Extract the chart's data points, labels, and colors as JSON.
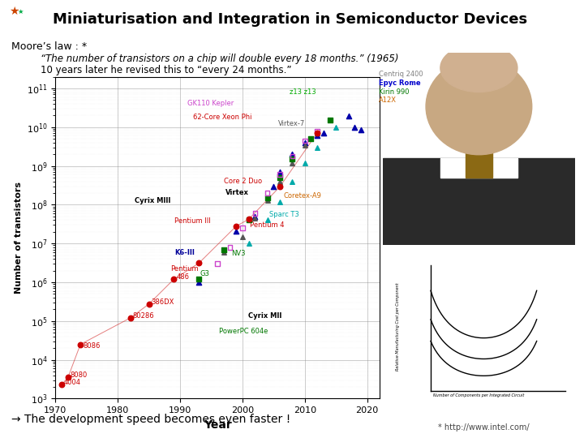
{
  "title": "Miniaturisation and Integration in Semiconductor Devices",
  "moores_law_label": "Moore’s law : *",
  "quote1": "“The number of transistors on a chip will double every 18 months.” (1965)",
  "quote2": "10 years later he revised this to “every 24 months.”",
  "footer_arrow": "→ The development speed becomes even faster !",
  "footnote": "* http://www.intel.com/",
  "xlabel": "Year",
  "ylabel": "Number of transistors",
  "title_color": "#000000",
  "header_line_color1": "#1f5fa6",
  "header_line_color2": "#00b0f0",
  "xlim": [
    1970,
    2022
  ],
  "red_dots": {
    "x": [
      1971,
      1972,
      1974,
      1982,
      1985,
      1989,
      1993,
      1999,
      2001,
      2006,
      2012
    ],
    "y": [
      2300,
      3500,
      25000,
      120000,
      275000,
      1200000,
      3100000,
      28000000,
      42000000,
      291000000,
      7100000000
    ],
    "labels": [
      "4004",
      "8080",
      "8086",
      "80286",
      "386DX",
      "486",
      "Pentium",
      "Pentium III",
      "Pentium 4",
      "Core 2 Duo",
      "62-Core Xeon Phi"
    ],
    "color": "#cc0000"
  },
  "blue_triangles": {
    "x": [
      1993,
      1999,
      2002,
      2005,
      2006,
      2008,
      2010,
      2012,
      2013,
      2017,
      2018,
      2019
    ],
    "y": [
      1000000,
      21000000,
      50000000,
      300000000,
      700000000,
      2000000000,
      4000000000,
      6000000000,
      7000000000,
      19200000000,
      10000000000,
      8500000000
    ],
    "color": "#0000aa"
  },
  "dark_triangles": {
    "x": [
      1997,
      2000,
      2002,
      2004,
      2006,
      2008,
      2010,
      2012
    ],
    "y": [
      6000000,
      15000000,
      45000000,
      130000000,
      400000000,
      1200000000,
      3500000000,
      7000000000
    ],
    "color": "#555555"
  },
  "green_squares": {
    "x": [
      1993,
      1997,
      2001,
      2004,
      2006,
      2008,
      2011,
      2014
    ],
    "y": [
      1200000,
      7000000,
      40000000,
      150000000,
      500000000,
      1500000000,
      5000000000,
      15000000000
    ],
    "color": "#007700"
  },
  "pink_squares": {
    "x": [
      1996,
      1998,
      2000,
      2002,
      2004,
      2006,
      2008,
      2010,
      2012
    ],
    "y": [
      3000000,
      8000000,
      25000000,
      60000000,
      200000000,
      600000000,
      1800000000,
      4500000000,
      8000000000
    ],
    "color": "#cc44cc"
  },
  "cyan_triangles": {
    "x": [
      2001,
      2004,
      2006,
      2008,
      2010,
      2012,
      2015
    ],
    "y": [
      10000000,
      40000000,
      120000000,
      400000000,
      1200000000,
      3000000000,
      10000000000
    ],
    "color": "#00aaaa"
  }
}
